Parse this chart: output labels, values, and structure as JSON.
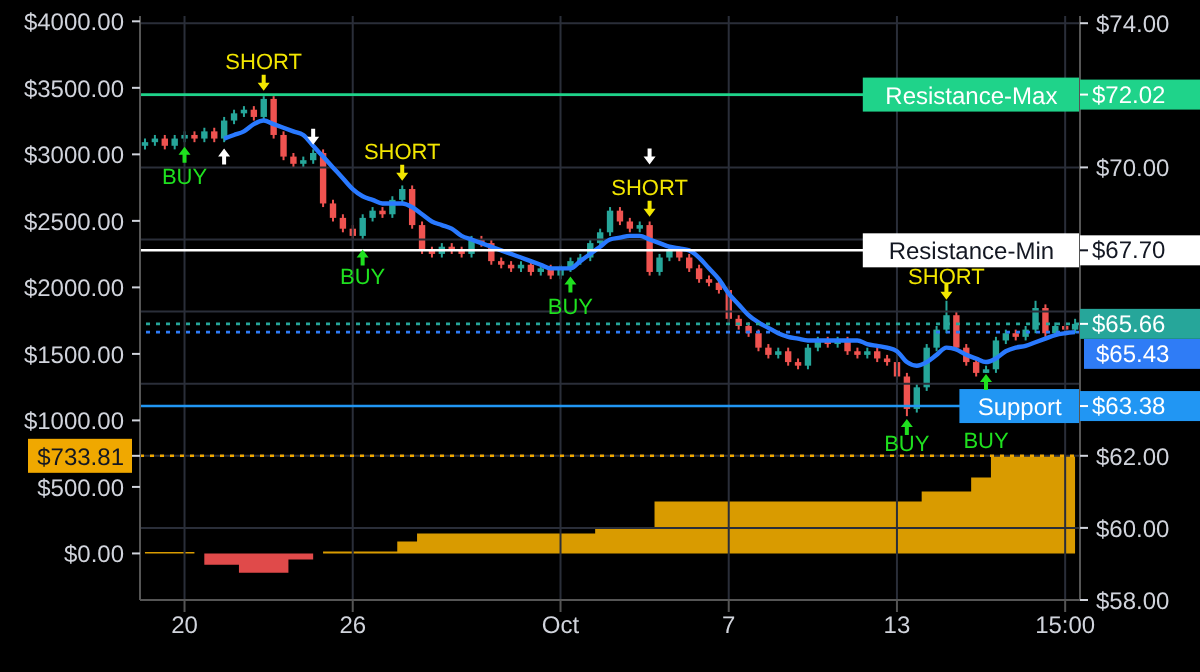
{
  "chart_data": {
    "type": "candlestick",
    "categories": [
      null,
      null,
      null,
      null,
      "20",
      null,
      null,
      null,
      null,
      null,
      null,
      null,
      null,
      null,
      null,
      null,
      null,
      null,
      null,
      null,
      null,
      "26",
      null,
      null,
      null,
      null,
      null,
      null,
      null,
      null,
      null,
      null,
      null,
      null,
      null,
      null,
      null,
      null,
      null,
      null,
      null,
      null,
      "Oct",
      null,
      null,
      null,
      null,
      null,
      null,
      null,
      null,
      null,
      null,
      null,
      null,
      null,
      null,
      null,
      null,
      "7",
      null,
      null,
      null,
      null,
      null,
      null,
      null,
      null,
      null,
      null,
      null,
      null,
      null,
      null,
      null,
      null,
      "13",
      null,
      null,
      null,
      null,
      null,
      null,
      null,
      null,
      null,
      null,
      null,
      null,
      null,
      null,
      null,
      null,
      "15:00",
      null
    ],
    "series": [
      {
        "axis": "y2",
        "ohlc": [
          [
            70.6,
            70.8,
            70.5,
            70.7
          ],
          [
            70.7,
            70.9,
            70.6,
            70.8
          ],
          [
            70.8,
            70.9,
            70.5,
            70.6
          ],
          [
            70.6,
            70.9,
            70.5,
            70.8
          ],
          [
            70.8,
            71.0,
            70.7,
            70.9
          ],
          [
            70.9,
            71.0,
            70.7,
            70.8
          ],
          [
            70.8,
            71.1,
            70.7,
            71.0
          ],
          [
            71.0,
            71.1,
            70.7,
            70.8
          ],
          [
            70.8,
            71.4,
            70.7,
            71.3
          ],
          [
            71.3,
            71.6,
            71.2,
            71.5
          ],
          [
            71.5,
            71.7,
            71.4,
            71.6
          ],
          [
            71.6,
            71.7,
            71.3,
            71.4
          ],
          [
            71.4,
            72.0,
            71.3,
            71.9
          ],
          [
            71.9,
            72.0,
            70.8,
            70.9
          ],
          [
            70.9,
            71.0,
            70.2,
            70.3
          ],
          [
            70.3,
            70.4,
            70.0,
            70.1
          ],
          [
            70.1,
            70.3,
            70.0,
            70.2
          ],
          [
            70.2,
            70.5,
            70.1,
            70.4
          ],
          [
            70.4,
            70.5,
            68.9,
            69.0
          ],
          [
            69.0,
            69.1,
            68.5,
            68.6
          ],
          [
            68.6,
            68.7,
            68.2,
            68.3
          ],
          [
            68.3,
            68.4,
            68.0,
            68.1
          ],
          [
            68.1,
            68.7,
            68.0,
            68.6
          ],
          [
            68.6,
            68.9,
            68.5,
            68.8
          ],
          [
            68.8,
            68.9,
            68.6,
            68.7
          ],
          [
            68.7,
            69.2,
            68.6,
            69.1
          ],
          [
            69.1,
            69.5,
            69.0,
            69.4
          ],
          [
            69.4,
            69.5,
            68.3,
            68.4
          ],
          [
            68.4,
            68.5,
            67.6,
            67.7
          ],
          [
            67.7,
            67.8,
            67.5,
            67.6
          ],
          [
            67.6,
            67.9,
            67.5,
            67.8
          ],
          [
            67.8,
            67.9,
            67.6,
            67.7
          ],
          [
            67.7,
            67.8,
            67.5,
            67.6
          ],
          [
            67.6,
            68.1,
            67.5,
            68.0
          ],
          [
            68.0,
            68.1,
            67.8,
            67.9
          ],
          [
            67.9,
            68.0,
            67.3,
            67.4
          ],
          [
            67.4,
            67.5,
            67.2,
            67.3
          ],
          [
            67.3,
            67.4,
            67.1,
            67.2
          ],
          [
            67.2,
            67.4,
            67.1,
            67.3
          ],
          [
            67.3,
            67.4,
            67.0,
            67.1
          ],
          [
            67.1,
            67.3,
            67.0,
            67.2
          ],
          [
            67.2,
            67.3,
            66.9,
            67.0
          ],
          [
            67.0,
            67.3,
            66.9,
            67.2
          ],
          [
            67.2,
            67.5,
            67.1,
            67.4
          ],
          [
            67.4,
            67.6,
            67.3,
            67.5
          ],
          [
            67.5,
            68.0,
            67.4,
            67.9
          ],
          [
            67.9,
            68.3,
            67.8,
            68.2
          ],
          [
            68.2,
            68.9,
            68.1,
            68.8
          ],
          [
            68.8,
            68.9,
            68.4,
            68.5
          ],
          [
            68.5,
            68.6,
            68.2,
            68.3
          ],
          [
            68.3,
            68.5,
            68.2,
            68.4
          ],
          [
            68.4,
            68.5,
            67.0,
            67.1
          ],
          [
            67.1,
            67.6,
            67.0,
            67.5
          ],
          [
            67.5,
            67.8,
            67.4,
            67.7
          ],
          [
            67.7,
            67.8,
            67.4,
            67.5
          ],
          [
            67.5,
            67.6,
            67.1,
            67.2
          ],
          [
            67.2,
            67.3,
            66.8,
            66.9
          ],
          [
            66.9,
            67.0,
            66.7,
            66.8
          ],
          [
            66.8,
            66.9,
            66.5,
            66.6
          ],
          [
            66.6,
            66.7,
            65.7,
            65.8
          ],
          [
            65.8,
            65.9,
            65.5,
            65.6
          ],
          [
            65.6,
            65.7,
            65.3,
            65.4
          ],
          [
            65.4,
            65.5,
            64.9,
            65.0
          ],
          [
            65.0,
            65.1,
            64.7,
            64.8
          ],
          [
            64.8,
            65.0,
            64.7,
            64.9
          ],
          [
            64.9,
            65.0,
            64.5,
            64.6
          ],
          [
            64.6,
            64.7,
            64.4,
            64.5
          ],
          [
            64.5,
            65.1,
            64.4,
            65.0
          ],
          [
            65.0,
            65.3,
            64.9,
            65.2
          ],
          [
            65.2,
            65.3,
            65.0,
            65.1
          ],
          [
            65.1,
            65.3,
            65.0,
            65.2
          ],
          [
            65.2,
            65.3,
            64.8,
            64.9
          ],
          [
            64.9,
            65.0,
            64.7,
            64.8
          ],
          [
            64.8,
            65.0,
            64.7,
            64.9
          ],
          [
            64.9,
            65.0,
            64.6,
            64.7
          ],
          [
            64.7,
            64.8,
            64.5,
            64.6
          ],
          [
            64.6,
            64.7,
            64.1,
            64.2
          ],
          [
            64.2,
            64.3,
            63.1,
            63.3
          ],
          [
            63.3,
            64.0,
            63.2,
            63.9
          ],
          [
            63.9,
            65.1,
            63.8,
            65.0
          ],
          [
            65.0,
            65.6,
            64.9,
            65.5
          ],
          [
            65.5,
            66.3,
            65.4,
            65.9
          ],
          [
            65.9,
            66.0,
            64.9,
            65.0
          ],
          [
            65.0,
            65.1,
            64.5,
            64.6
          ],
          [
            64.6,
            64.7,
            64.2,
            64.3
          ],
          [
            64.3,
            64.5,
            64.3,
            64.4
          ],
          [
            64.4,
            65.3,
            64.3,
            65.2
          ],
          [
            65.2,
            65.5,
            65.1,
            65.4
          ],
          [
            65.4,
            65.5,
            65.2,
            65.3
          ],
          [
            65.3,
            65.6,
            65.2,
            65.5
          ],
          [
            65.5,
            66.3,
            65.4,
            66.1
          ],
          [
            66.1,
            66.2,
            65.3,
            65.4
          ],
          [
            65.4,
            65.7,
            65.3,
            65.6
          ],
          [
            65.6,
            65.7,
            65.4,
            65.5
          ],
          [
            65.5,
            65.8,
            65.4,
            65.66
          ]
        ],
        "colors": [
          "#26a69a",
          "#26a69a",
          "#ef5350",
          "#26a69a",
          "#26a69a",
          "#ef5350",
          "#26a69a",
          "#ef5350",
          "#26a69a",
          "#26a69a",
          "#26a69a",
          "#ef5350",
          "#26a69a",
          "#ef5350",
          "#ef5350",
          "#ef5350",
          "#26a69a",
          "#26a69a",
          "#ef5350",
          "#ef5350",
          "#ef5350",
          "#ef5350",
          "#26a69a",
          "#26a69a",
          "#ef5350",
          "#26a69a",
          "#26a69a",
          "#ef5350",
          "#ef5350",
          "#ef5350",
          "#26a69a",
          "#ef5350",
          "#ef5350",
          "#26a69a",
          "#ef5350",
          "#ef5350",
          "#ef5350",
          "#ef5350",
          "#26a69a",
          "#ef5350",
          "#26a69a",
          "#ef5350",
          "#26a69a",
          "#26a69a",
          "#26a69a",
          "#26a69a",
          "#26a69a",
          "#26a69a",
          "#ef5350",
          "#ef5350",
          "#26a69a",
          "#ef5350",
          "#26a69a",
          "#26a69a",
          "#ef5350",
          "#ef5350",
          "#ef5350",
          "#ef5350",
          "#ef5350",
          "#ef5350",
          "#ef5350",
          "#ef5350",
          "#ef5350",
          "#ef5350",
          "#26a69a",
          "#ef5350",
          "#ef5350",
          "#26a69a",
          "#26a69a",
          "#ef5350",
          "#26a69a",
          "#ef5350",
          "#ef5350",
          "#26a69a",
          "#ef5350",
          "#ef5350",
          "#ef5350",
          "#ef5350",
          "#26a69a",
          "#26a69a",
          "#26a69a",
          "#26a69a",
          "#ef5350",
          "#ef5350",
          "#ef5350",
          "#26a69a",
          "#26a69a",
          "#26a69a",
          "#ef5350",
          "#26a69a",
          "#26a69a",
          "#ef5350",
          "#26a69a",
          "#ef5350",
          "#26a69a"
        ]
      },
      {
        "type": "line",
        "axis": "y2",
        "color": "#2979ff",
        "values": [
          null,
          null,
          null,
          null,
          null,
          null,
          null,
          null,
          70.8,
          70.9,
          71.0,
          71.2,
          71.3,
          71.2,
          71.1,
          71.0,
          70.9,
          70.6,
          70.3,
          70.0,
          69.7,
          69.4,
          69.2,
          69.1,
          69.0,
          69.0,
          69.0,
          68.9,
          68.7,
          68.5,
          68.4,
          68.3,
          68.1,
          68.0,
          67.9,
          67.8,
          67.7,
          67.6,
          67.5,
          67.4,
          67.3,
          67.2,
          67.2,
          67.2,
          67.4,
          67.6,
          67.8,
          68.0,
          68.05,
          68.1,
          68.1,
          68.0,
          67.9,
          67.8,
          67.75,
          67.7,
          67.5,
          67.2,
          66.9,
          66.5,
          66.2,
          65.9,
          65.7,
          65.55,
          65.4,
          65.3,
          65.25,
          65.2,
          65.2,
          65.2,
          65.2,
          65.2,
          65.2,
          65.1,
          65.05,
          65.0,
          64.9,
          64.6,
          64.5,
          64.6,
          64.8,
          65.0,
          64.95,
          64.8,
          64.7,
          64.6,
          64.7,
          64.9,
          65.0,
          65.05,
          65.15,
          65.25,
          65.35,
          65.4,
          65.43
        ]
      },
      {
        "type": "area",
        "axis": "y",
        "color": "#e04a4a",
        "values": [
          null,
          null,
          null,
          null,
          null,
          null,
          -85,
          -85,
          -85,
          -85,
          -145,
          -145,
          -145,
          -145,
          -145,
          -45,
          -45,
          -45,
          null,
          null,
          null,
          null,
          null,
          null,
          null,
          null,
          null,
          null,
          null,
          null,
          null,
          null,
          null,
          null,
          null,
          null,
          null,
          null,
          null,
          null,
          null,
          null,
          null,
          null,
          null,
          null,
          null,
          null,
          null,
          null,
          null,
          null,
          null,
          null,
          null,
          null,
          null,
          null,
          null,
          null,
          null,
          null,
          null,
          null,
          null,
          null,
          null,
          null,
          null,
          null,
          null,
          null,
          null,
          null,
          null,
          null,
          null,
          null,
          null,
          null,
          null,
          null,
          null,
          null,
          null,
          null,
          null,
          null,
          null,
          null,
          null,
          null,
          null,
          null,
          null
        ]
      },
      {
        "type": "area",
        "axis": "y",
        "color": "#d99b00",
        "values": [
          10,
          10,
          10,
          10,
          10,
          10,
          null,
          null,
          null,
          null,
          null,
          null,
          null,
          null,
          null,
          null,
          null,
          null,
          15,
          15,
          15,
          15,
          15,
          15,
          15,
          15,
          90,
          90,
          150,
          150,
          150,
          150,
          150,
          150,
          150,
          150,
          150,
          150,
          150,
          150,
          150,
          150,
          150,
          150,
          150,
          150,
          195,
          195,
          195,
          195,
          195,
          195,
          390,
          390,
          390,
          390,
          390,
          390,
          390,
          390,
          390,
          390,
          390,
          390,
          390,
          390,
          390,
          390,
          390,
          390,
          390,
          390,
          390,
          390,
          390,
          390,
          390,
          390,
          390,
          465,
          465,
          465,
          465,
          465,
          570,
          570,
          733.81,
          733.81,
          733.81,
          733.81,
          733.81,
          733.81,
          733.81,
          733.81,
          733.81
        ]
      }
    ],
    "ylim": [
      -350,
      4040
    ],
    "yticks": [
      {
        "value": 0,
        "label": "$0.00"
      },
      {
        "value": 500,
        "label": "$500.00"
      },
      {
        "value": 733.81,
        "label": "$733.81"
      },
      {
        "value": 1000,
        "label": "$1000.00"
      },
      {
        "value": 1500,
        "label": "$1500.00"
      },
      {
        "value": 2000,
        "label": "$2000.00"
      },
      {
        "value": 2500,
        "label": "$2500.00"
      },
      {
        "value": 3000,
        "label": "$3000.00"
      },
      {
        "value": 3500,
        "label": "$3500.00"
      },
      {
        "value": 4000,
        "label": "$4000.00"
      }
    ],
    "y2lim": [
      58,
      74.2
    ],
    "y2ticks": [
      {
        "value": 58,
        "label": "$58.00"
      },
      {
        "value": 60,
        "label": "$60.00"
      },
      {
        "value": 62,
        "label": "$62.00"
      },
      {
        "value": 63.38,
        "label": "$63.38"
      },
      {
        "value": 64,
        "label": null
      },
      {
        "value": 65.66,
        "label": "$65.66"
      },
      {
        "value": 66,
        "label": null
      },
      {
        "value": 67.7,
        "label": "$67.70"
      },
      {
        "value": 68,
        "label": null
      },
      {
        "value": 70,
        "label": "$70.00"
      },
      {
        "value": 72,
        "label": null
      },
      {
        "value": 72.02,
        "label": "$72.02"
      },
      {
        "value": 74,
        "label": "$74.00"
      }
    ],
    "ref_lines": [
      {
        "axis": "y2",
        "value": 72.02,
        "label": "Resistance-Max",
        "color": "#1fd38a"
      },
      {
        "axis": "y2",
        "value": 67.7,
        "label": "Resistance-Min",
        "color": "#ffffff"
      },
      {
        "axis": "y2",
        "value": 65.66,
        "color": "#26a69a",
        "line_style": "dotted"
      },
      {
        "axis": "y2",
        "value": 65.43,
        "label": "$65.43",
        "color": "#2f7cf6",
        "line_style": "dotted"
      },
      {
        "axis": "y2",
        "value": 63.38,
        "label": "Support",
        "color": "#2196f3"
      },
      {
        "axis": "y",
        "value": 733.81,
        "color": "#f0a800",
        "line_style": "dotted"
      }
    ],
    "annotations": [
      "BUY",
      "SHORT",
      "BUY",
      "SHORT",
      "BUY",
      "SHORT",
      "BUY",
      "SHORT",
      "BUY"
    ],
    "grid": true
  }
}
